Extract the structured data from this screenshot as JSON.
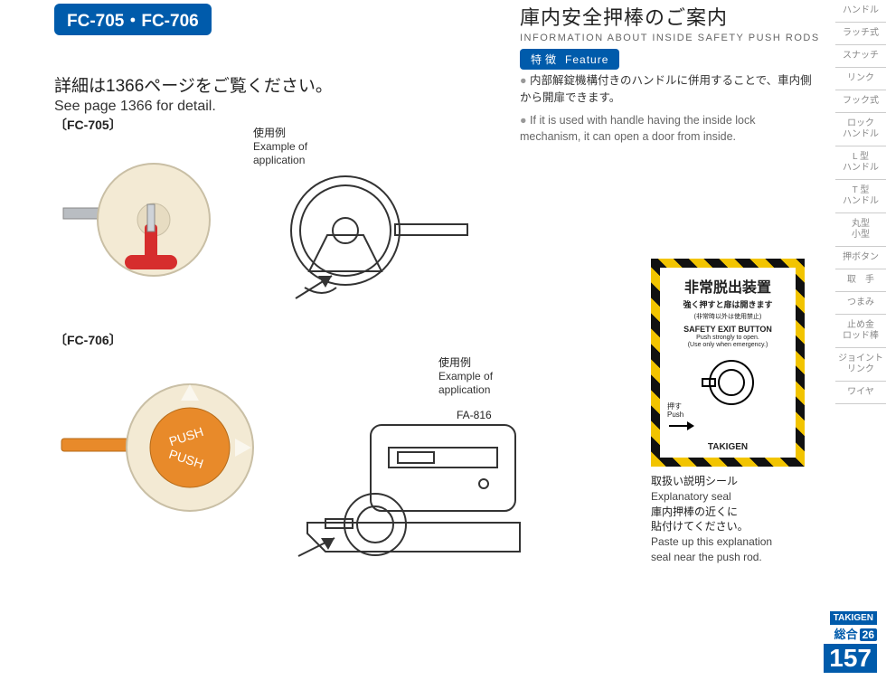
{
  "badge": "FC-705・FC-706",
  "title": {
    "jp": "庫内安全押棒のご案内",
    "en": "INFORMATION ABOUT INSIDE SAFETY PUSH RODS"
  },
  "detail": {
    "jp": "詳細は1366ページをご覧ください。",
    "en": "See page 1366 for detail."
  },
  "feature_head": {
    "jp": "特徴",
    "en": "Feature"
  },
  "feature": {
    "jp": "内部解錠機構付きのハンドルに併用することで、車内側から開扉できます。",
    "en": "If it is used with handle having the inside lock mechanism, it can open a door from inside."
  },
  "parts": {
    "p1": "〔FC-705〕",
    "p2": "〔FC-706〕"
  },
  "example_label": {
    "jp": "使用例",
    "en1": "Example of",
    "en2": "application"
  },
  "fa_label": "FA-816",
  "seal": {
    "t1": "非常脱出装置",
    "t2": "強く押すと扉は開きます",
    "t3": "(非常時以外は使用禁止)",
    "t4": "SAFETY EXIT BUTTON",
    "t5": "Push strongly to open.",
    "t6": "(Use only when emergency.)",
    "push_jp": "押す",
    "push_en": "Push",
    "brand": "TAKIGEN"
  },
  "seal_caption": {
    "l1": "取扱い説明シール",
    "l2": "Explanatory seal",
    "l3": "庫内押棒の近くに",
    "l4": "貼付けてください。",
    "l5": "Paste up this explanation",
    "l6": "seal near the push rod."
  },
  "sidebar": [
    "ハンドル",
    "ラッチ式",
    "スナッチ",
    "リンク",
    "フック式",
    "ロック\nハンドル",
    "L 型\nハンドル",
    "T 型\nハンドル",
    "丸型\n小型",
    "押ボタン",
    "取　手",
    "つまみ",
    "止め金\nロッド棒",
    "ジョイント\nリンク",
    "ワイヤ"
  ],
  "page": {
    "brand": "TAKIGEN",
    "sogo": "総合",
    "sogo_num": "26",
    "page": "157"
  },
  "colors": {
    "brand_blue": "#005bab",
    "handle_red": "#d62d2d",
    "handle_orange": "#e88a2a",
    "knob_cream": "#f3ead4",
    "hazard_yellow": "#f2c400"
  }
}
